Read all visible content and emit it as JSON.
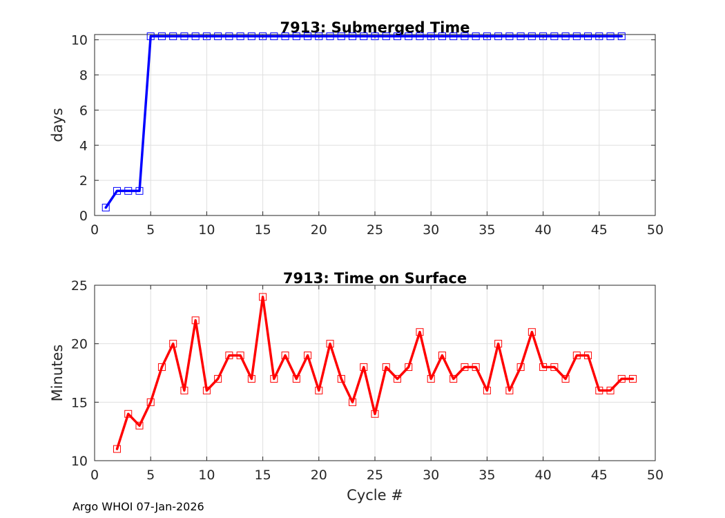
{
  "chart_data": [
    {
      "type": "line",
      "title": "7913: Submerged Time",
      "xlabel": "",
      "ylabel": "days",
      "xlim": [
        0,
        50
      ],
      "ylim": [
        0,
        10.3
      ],
      "xticks": [
        0,
        5,
        10,
        15,
        20,
        25,
        30,
        35,
        40,
        45,
        50
      ],
      "yticks": [
        0,
        2,
        4,
        6,
        8,
        10
      ],
      "grid": true,
      "color": "#0000ff",
      "marker": "square",
      "x": [
        1,
        2,
        3,
        4,
        5,
        6,
        7,
        8,
        9,
        10,
        11,
        12,
        13,
        14,
        15,
        16,
        17,
        18,
        19,
        20,
        21,
        22,
        23,
        24,
        25,
        26,
        27,
        28,
        29,
        30,
        31,
        32,
        33,
        34,
        35,
        36,
        37,
        38,
        39,
        40,
        41,
        42,
        43,
        44,
        45,
        46,
        47
      ],
      "y": [
        0.45,
        1.4,
        1.4,
        1.4,
        10.2,
        10.2,
        10.2,
        10.2,
        10.2,
        10.2,
        10.2,
        10.2,
        10.2,
        10.2,
        10.2,
        10.2,
        10.2,
        10.2,
        10.2,
        10.2,
        10.2,
        10.2,
        10.2,
        10.2,
        10.2,
        10.2,
        10.2,
        10.2,
        10.2,
        10.2,
        10.2,
        10.2,
        10.2,
        10.2,
        10.2,
        10.2,
        10.2,
        10.2,
        10.2,
        10.2,
        10.2,
        10.2,
        10.2,
        10.2,
        10.2,
        10.2,
        10.2
      ]
    },
    {
      "type": "line",
      "title": "7913: Time on Surface",
      "xlabel": "Cycle #",
      "ylabel": "Minutes",
      "xlim": [
        0,
        50
      ],
      "ylim": [
        10,
        25
      ],
      "xticks": [
        0,
        5,
        10,
        15,
        20,
        25,
        30,
        35,
        40,
        45,
        50
      ],
      "yticks": [
        10,
        15,
        20,
        25
      ],
      "grid": true,
      "color": "#ff0000",
      "marker": "square",
      "x": [
        2,
        3,
        4,
        5,
        6,
        7,
        8,
        9,
        10,
        11,
        12,
        13,
        14,
        15,
        16,
        17,
        18,
        19,
        20,
        21,
        22,
        23,
        24,
        25,
        26,
        27,
        28,
        29,
        30,
        31,
        32,
        33,
        34,
        35,
        36,
        37,
        38,
        39,
        40,
        41,
        42,
        43,
        44,
        45,
        46,
        47,
        48
      ],
      "y": [
        11,
        14,
        13,
        15,
        18,
        20,
        16,
        22,
        16,
        17,
        19,
        19,
        17,
        24,
        17,
        19,
        17,
        19,
        16,
        20,
        17,
        15,
        18,
        14,
        18,
        17,
        18,
        21,
        17,
        19,
        17,
        18,
        18,
        16,
        20,
        16,
        18,
        21,
        18,
        18,
        17,
        19,
        19,
        16,
        16,
        17,
        17
      ]
    }
  ],
  "footer": "Argo WHOI 07-Jan-2026"
}
